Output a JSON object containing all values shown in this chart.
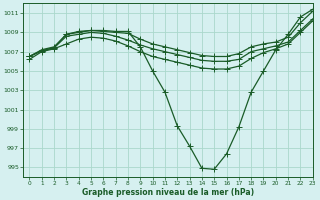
{
  "title": "Graphe pression niveau de la mer (hPa)",
  "bg_color": "#d6f0f0",
  "grid_color": "#aad8cc",
  "line_color": "#1a5c28",
  "xlim": [
    -0.5,
    23
  ],
  "ylim": [
    994,
    1012
  ],
  "yticks": [
    995,
    997,
    999,
    1001,
    1003,
    1005,
    1007,
    1009,
    1011
  ],
  "xticks": [
    0,
    1,
    2,
    3,
    4,
    5,
    6,
    7,
    8,
    9,
    10,
    11,
    12,
    13,
    14,
    15,
    16,
    17,
    18,
    19,
    20,
    21,
    22,
    23
  ],
  "line1_x": [
    0,
    1,
    2,
    3,
    4,
    5,
    6,
    7,
    8,
    9,
    10,
    11,
    12,
    13,
    14,
    15,
    16,
    17,
    18,
    19,
    20,
    21,
    22,
    23
  ],
  "line1_y": [
    1006.5,
    1007.1,
    1007.4,
    1008.8,
    1009.1,
    1009.2,
    1009.2,
    1009.1,
    1009.1,
    1007.5,
    1005.0,
    1002.8,
    999.3,
    997.2,
    994.9,
    994.8,
    996.4,
    999.2,
    1002.8,
    1005.0,
    1007.2,
    1008.8,
    1010.6,
    1011.4
  ],
  "line2_x": [
    0,
    1,
    2,
    3,
    4,
    5,
    6,
    7,
    8,
    9,
    10,
    11,
    12,
    13,
    14,
    15,
    16,
    17,
    18,
    19,
    20,
    21,
    22,
    23
  ],
  "line2_y": [
    1006.5,
    1007.2,
    1007.5,
    1008.8,
    1009.0,
    1009.2,
    1009.1,
    1009.0,
    1008.9,
    1008.3,
    1007.8,
    1007.5,
    1007.2,
    1006.9,
    1006.6,
    1006.5,
    1006.5,
    1006.8,
    1007.5,
    1007.8,
    1008.0,
    1008.5,
    1010.0,
    1011.2
  ],
  "line3_x": [
    0,
    1,
    2,
    3,
    4,
    5,
    6,
    7,
    8,
    9,
    10,
    11,
    12,
    13,
    14,
    15,
    16,
    17,
    18,
    19,
    20,
    21,
    22,
    23
  ],
  "line3_y": [
    1006.5,
    1007.1,
    1007.4,
    1008.6,
    1008.8,
    1009.0,
    1008.9,
    1008.6,
    1008.2,
    1007.7,
    1007.3,
    1007.0,
    1006.7,
    1006.4,
    1006.1,
    1006.0,
    1006.0,
    1006.2,
    1007.0,
    1007.3,
    1007.6,
    1008.0,
    1009.2,
    1010.4
  ],
  "line4_x": [
    0,
    1,
    2,
    3,
    4,
    5,
    6,
    7,
    8,
    9,
    10,
    11,
    12,
    13,
    14,
    15,
    16,
    17,
    18,
    19,
    20,
    21,
    22,
    23
  ],
  "line4_y": [
    1006.2,
    1007.0,
    1007.3,
    1007.8,
    1008.3,
    1008.5,
    1008.4,
    1008.1,
    1007.6,
    1007.0,
    1006.5,
    1006.2,
    1005.9,
    1005.6,
    1005.3,
    1005.2,
    1005.2,
    1005.5,
    1006.3,
    1006.9,
    1007.3,
    1007.8,
    1009.0,
    1010.2
  ]
}
